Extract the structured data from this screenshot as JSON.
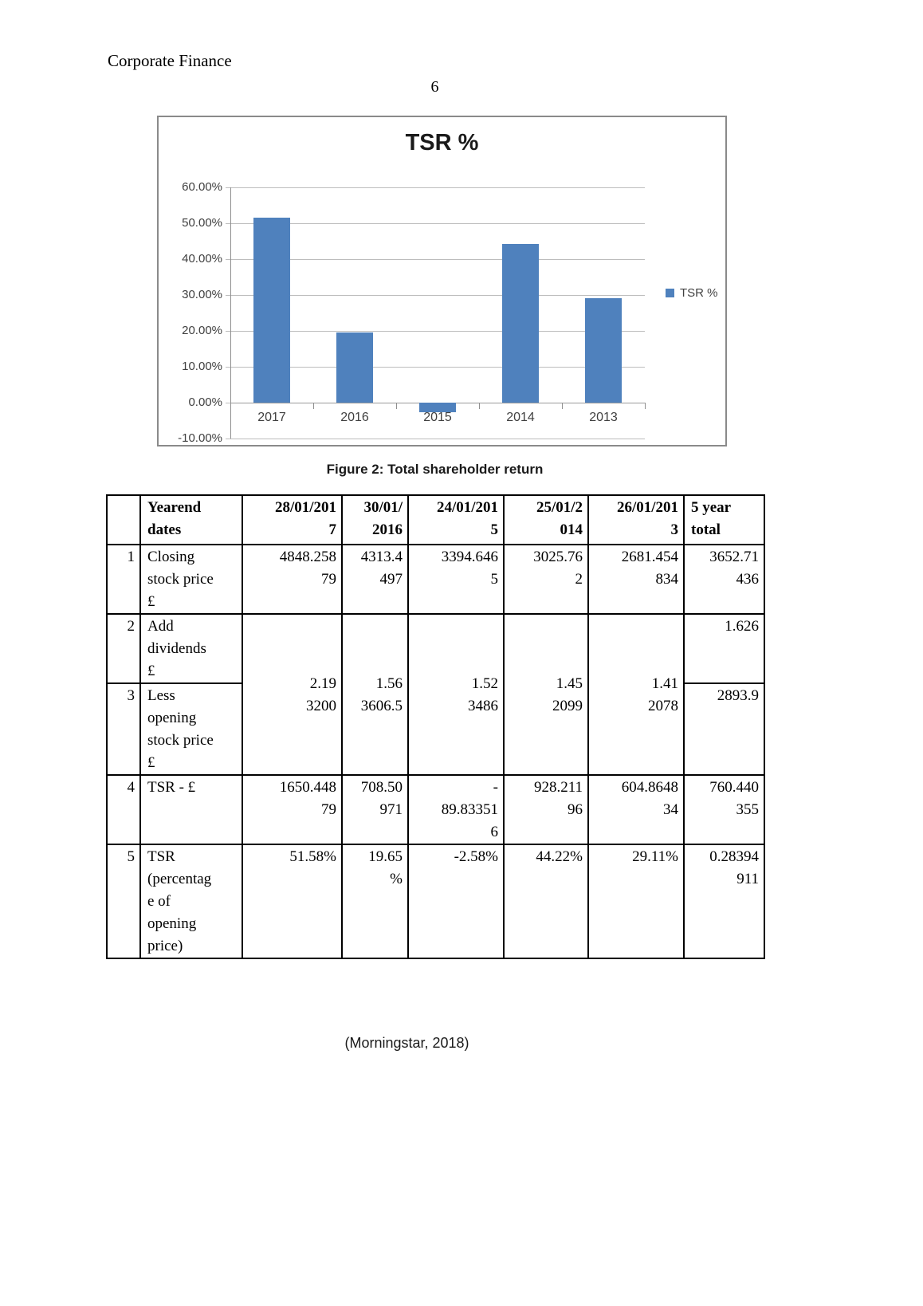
{
  "page": {
    "header_left": "Corporate Finance",
    "page_number": "6",
    "figure_caption": "Figure 2: Total shareholder return",
    "citation": "(Morningstar, 2018)"
  },
  "chart_data": {
    "type": "bar",
    "title": "TSR %",
    "categories": [
      "2017",
      "2016",
      "2015",
      "2014",
      "2013"
    ],
    "series": [
      {
        "name": "TSR %",
        "values": [
          51.58,
          19.65,
          -2.58,
          44.22,
          29.11
        ]
      }
    ],
    "ylim": [
      -10,
      60
    ],
    "ytick_step": 10,
    "ytick_labels": [
      "60.00%",
      "50.00%",
      "40.00%",
      "30.00%",
      "20.00%",
      "10.00%",
      "0.00%",
      "-10.00%"
    ],
    "legend_entries": [
      "TSR %"
    ],
    "legend_position": "right",
    "grid": true,
    "bar_color": "#4f81bd"
  },
  "table": {
    "header": [
      "",
      "Yearend\ndates",
      "28/01/201\n7",
      "30/01/\n2016",
      "24/01/201\n5",
      "25/01/2\n014",
      "26/01/201\n3",
      "5 year\ntotal"
    ],
    "body": [
      {
        "cells": [
          {
            "t": "1"
          },
          {
            "t": "Closing\nstock price\n£",
            "align": "left"
          },
          {
            "t": "4848.258\n79"
          },
          {
            "t": "4313.4\n497"
          },
          {
            "t": "3394.646\n5"
          },
          {
            "t": "3025.76\n2"
          },
          {
            "t": "2681.454\n834"
          },
          {
            "t": "3652.71\n436"
          }
        ]
      },
      {
        "cells": [
          {
            "t": "2"
          },
          {
            "t": "Add\ndividends\n£",
            "align": "left"
          },
          {
            "t": "2.19\n3200",
            "rowspan": 2,
            "valign": "middle"
          },
          {
            "t": "1.56\n3606.5",
            "rowspan": 2,
            "valign": "middle"
          },
          {
            "t": "1.52\n3486",
            "rowspan": 2,
            "valign": "middle"
          },
          {
            "t": "1.45\n2099",
            "rowspan": 2,
            "valign": "middle"
          },
          {
            "t": "1.41\n2078",
            "rowspan": 2,
            "valign": "middle"
          },
          {
            "t": "1.626"
          }
        ]
      },
      {
        "cells": [
          {
            "t": "3"
          },
          {
            "t": "Less\nopening\nstock price\n£",
            "align": "left"
          },
          {
            "t": "2893.9"
          }
        ]
      },
      {
        "cells": [
          {
            "t": "4"
          },
          {
            "t": "TSR - £",
            "align": "left"
          },
          {
            "t": "1650.448\n79"
          },
          {
            "t": "708.50\n971"
          },
          {
            "t": "-\n89.83351\n6"
          },
          {
            "t": "928.211\n96"
          },
          {
            "t": "604.8648\n34"
          },
          {
            "t": "760.440\n355"
          }
        ]
      },
      {
        "cells": [
          {
            "t": "5"
          },
          {
            "t": "TSR\n(percentag\ne of\nopening\nprice)",
            "align": "left"
          },
          {
            "t": "51.58%"
          },
          {
            "t": "19.65\n%"
          },
          {
            "t": "-2.58%"
          },
          {
            "t": "44.22%"
          },
          {
            "t": "29.11%"
          },
          {
            "t": "0.28394\n911"
          }
        ]
      }
    ]
  }
}
